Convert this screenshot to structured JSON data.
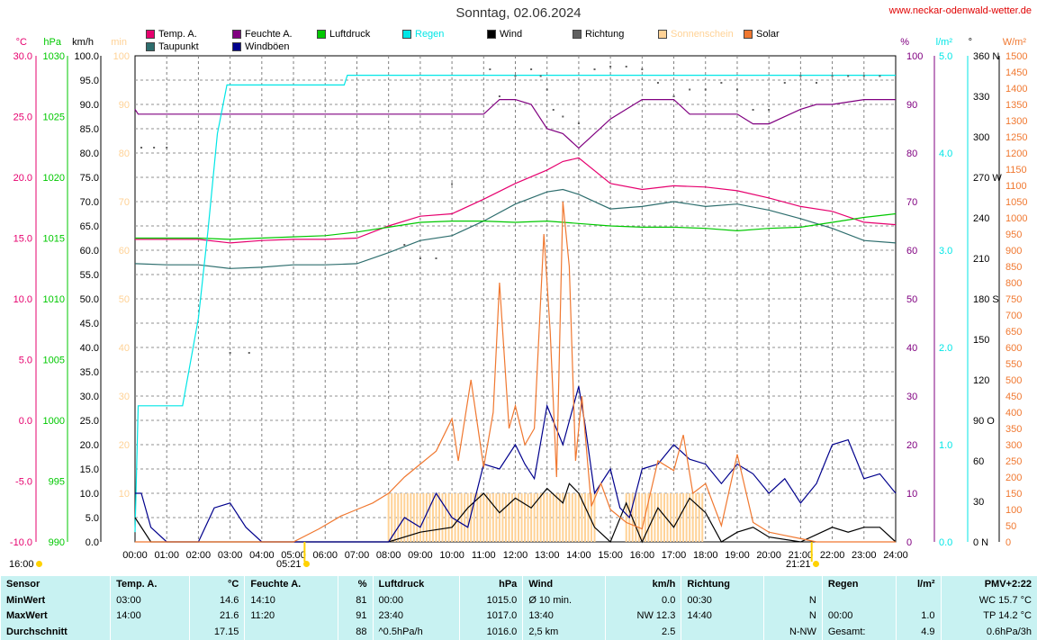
{
  "title": "Sonntag, 02.06.2024",
  "site": "www.neckar-odenwald-wetter.de",
  "legend": [
    {
      "label": "Temp. A.",
      "color": "#e6006e"
    },
    {
      "label": "Taupunkt",
      "color": "#2e6e6e"
    },
    {
      "label": "Feuchte A.",
      "color": "#800080"
    },
    {
      "label": "Windböen",
      "color": "#00008c"
    },
    {
      "label": "Luftdruck",
      "color": "#00c800"
    },
    {
      "label": "Regen",
      "color": "#00e6e6"
    },
    {
      "label": "Wind",
      "color": "#000000"
    },
    {
      "label": "Richtung",
      "color": "#606060"
    },
    {
      "label": "Sonnenschein",
      "color": "#ffd296"
    },
    {
      "label": "Solar",
      "color": "#f07830"
    }
  ],
  "axis_units": {
    "temp": "°C",
    "pressure": "hPa",
    "wind": "km/h",
    "sun": "min",
    "humidity": "%",
    "rain": "l/m²",
    "direction": "°",
    "solar": "W/m²"
  },
  "sun_times": {
    "left_label": "16:00",
    "sunrise": "05:21",
    "sunset": "21:21"
  },
  "chart_data": {
    "type": "line",
    "x_ticks": [
      "00:00",
      "01:00",
      "02:00",
      "03:00",
      "04:00",
      "05:00",
      "06:00",
      "07:00",
      "08:00",
      "09:00",
      "10:00",
      "11:00",
      "12:00",
      "13:00",
      "14:00",
      "15:00",
      "16:00",
      "17:00",
      "18:00",
      "19:00",
      "20:00",
      "21:00",
      "22:00",
      "23:00",
      "24:00"
    ],
    "axes": {
      "temp": {
        "ticks": [
          "30.0",
          "25.0",
          "20.0",
          "15.0",
          "10.0",
          "5.0",
          "0.0",
          "-5.0",
          "-10.0"
        ],
        "color": "#e6006e"
      },
      "pressure": {
        "ticks": [
          "1030",
          "1025",
          "1020",
          "1015",
          "1010",
          "1005",
          "1000",
          "995",
          "990"
        ],
        "color": "#00c800"
      },
      "wind": {
        "ticks": [
          "100.0",
          "95.0",
          "90.0",
          "85.0",
          "80.0",
          "75.0",
          "70.0",
          "65.0",
          "60.0",
          "55.0",
          "50.0",
          "45.0",
          "40.0",
          "35.0",
          "30.0",
          "25.0",
          "20.0",
          "15.0",
          "10.0",
          "5.0",
          "0.0"
        ],
        "color": "#000000"
      },
      "sun": {
        "ticks": [
          "100",
          "90",
          "80",
          "70",
          "60",
          "50",
          "40",
          "30",
          "20",
          "10"
        ],
        "color": "#ffd296"
      },
      "humidity": {
        "ticks": [
          "100",
          "90",
          "80",
          "70",
          "60",
          "50",
          "40",
          "30",
          "20",
          "10",
          "0"
        ],
        "color": "#800080"
      },
      "rain": {
        "ticks": [
          "5.0",
          "4.0",
          "3.0",
          "2.0",
          "1.0",
          "0.0"
        ],
        "color": "#00e6e6"
      },
      "direction": {
        "ticks": [
          "360 N",
          "330",
          "300",
          "270 W",
          "240",
          "210",
          "180 S",
          "150",
          "120",
          "90 O",
          "60",
          "30",
          "0 N"
        ],
        "color": "#000000"
      },
      "solar": {
        "ticks": [
          "1500",
          "1450",
          "1400",
          "1350",
          "1300",
          "1250",
          "1200",
          "1150",
          "1100",
          "1050",
          "1000",
          "950",
          "900",
          "850",
          "800",
          "750",
          "700",
          "650",
          "600",
          "550",
          "500",
          "450",
          "400",
          "350",
          "300",
          "250",
          "200",
          "150",
          "100",
          "50",
          "0"
        ],
        "color": "#f07830"
      }
    },
    "series": [
      {
        "name": "Temp. A.",
        "unit": "°C",
        "axis": "temp",
        "color": "#e6006e",
        "x": [
          0,
          1,
          2,
          3,
          4,
          5,
          6,
          7,
          8,
          9,
          10,
          11,
          12,
          13,
          13.5,
          14,
          15,
          16,
          17,
          18,
          19,
          20,
          21,
          22,
          23,
          24
        ],
        "y": [
          14.9,
          14.9,
          14.9,
          14.6,
          14.8,
          14.9,
          14.9,
          15.0,
          16.0,
          16.8,
          17.0,
          18.2,
          19.5,
          20.6,
          21.3,
          21.6,
          19.5,
          19.0,
          19.3,
          19.2,
          18.9,
          18.3,
          17.6,
          17.2,
          16.3,
          16.1
        ]
      },
      {
        "name": "Taupunkt",
        "unit": "°C",
        "axis": "temp",
        "color": "#2e6e6e",
        "x": [
          0,
          1,
          2,
          3,
          4,
          5,
          6,
          7,
          8,
          9,
          10,
          11,
          12,
          13,
          13.5,
          14,
          15,
          16,
          17,
          18,
          19,
          20,
          21,
          22,
          23,
          24
        ],
        "y": [
          12.9,
          12.8,
          12.8,
          12.5,
          12.6,
          12.8,
          12.8,
          12.9,
          13.8,
          14.8,
          15.2,
          16.4,
          17.8,
          18.8,
          19.0,
          18.6,
          17.4,
          17.6,
          18.0,
          17.6,
          17.8,
          17.3,
          16.6,
          15.8,
          14.8,
          14.6
        ]
      },
      {
        "name": "Feuchte A.",
        "unit": "%",
        "axis": "humidity",
        "color": "#800080",
        "x": [
          0,
          0.1,
          1,
          5,
          10,
          10.5,
          11,
          11.5,
          12,
          12.5,
          13,
          13.5,
          14,
          14.5,
          15,
          15.5,
          16,
          17,
          17.5,
          18,
          19,
          19.5,
          20,
          21,
          21.5,
          22,
          23,
          24
        ],
        "y": [
          89,
          88,
          88,
          88,
          88,
          88,
          88,
          91,
          91,
          90,
          85,
          84,
          81,
          84,
          87,
          89,
          91,
          91,
          88,
          88,
          88,
          86,
          86,
          89,
          90,
          90,
          91,
          91
        ]
      },
      {
        "name": "Luftdruck",
        "unit": "hPa",
        "axis": "pressure",
        "color": "#00c800",
        "x": [
          0,
          1,
          2,
          3,
          4,
          5,
          6,
          7,
          8,
          9,
          10,
          11,
          12,
          13,
          14,
          15,
          16,
          17,
          18,
          19,
          20,
          21,
          22,
          23,
          24
        ],
        "y": [
          1015.0,
          1015.0,
          1015.0,
          1014.9,
          1015.0,
          1015.1,
          1015.2,
          1015.5,
          1015.9,
          1016.3,
          1016.4,
          1016.4,
          1016.3,
          1016.4,
          1016.2,
          1016.0,
          1015.9,
          1015.9,
          1015.8,
          1015.6,
          1015.8,
          1015.9,
          1016.3,
          1016.7,
          1017.0
        ]
      },
      {
        "name": "Regen",
        "unit": "l/m²",
        "axis": "rain",
        "color": "#00e6e6",
        "x": [
          0,
          0.1,
          1.5,
          2.0,
          2.3,
          2.6,
          2.9,
          3.0,
          6.6,
          6.7,
          24
        ],
        "y": [
          0.1,
          1.4,
          1.4,
          2.3,
          3.2,
          4.2,
          4.7,
          4.7,
          4.7,
          4.8,
          4.8
        ]
      },
      {
        "name": "Wind",
        "unit": "km/h",
        "axis": "wind",
        "color": "#000000",
        "x": [
          0,
          0.5,
          1,
          4,
          5,
          6,
          8,
          9,
          10,
          10.5,
          11,
          11.5,
          12,
          12.5,
          13,
          13.5,
          13.7,
          14,
          14.5,
          15,
          15.5,
          16,
          16.5,
          17,
          17.5,
          18,
          18.5,
          19,
          19.5,
          20,
          21,
          22,
          22.5,
          23,
          23.5,
          24
        ],
        "y": [
          5,
          0,
          0,
          0,
          0,
          0,
          0,
          2,
          3,
          7,
          10,
          6,
          9,
          7,
          11,
          8,
          12,
          10,
          3,
          0,
          8,
          0,
          7,
          3,
          9,
          6,
          0,
          2,
          3,
          1,
          0,
          3,
          2,
          3,
          3,
          0
        ],
        "min": "0.0",
        "max": "12.3"
      },
      {
        "name": "Windböen",
        "unit": "km/h",
        "axis": "wind",
        "color": "#00008c",
        "x": [
          0,
          0.2,
          0.5,
          1,
          2,
          2.5,
          3,
          3.5,
          4,
          5,
          6,
          8,
          8.5,
          9,
          9.5,
          10,
          10.5,
          11,
          11.5,
          12,
          12.3,
          12.6,
          13,
          13.5,
          14,
          14.2,
          14.5,
          15,
          15.3,
          15.6,
          16,
          16.5,
          17,
          17.5,
          18,
          18.5,
          19,
          19.5,
          20,
          20.5,
          21,
          21.5,
          22,
          22.5,
          23,
          23.5,
          24
        ],
        "y": [
          10,
          10,
          3,
          0,
          0,
          7,
          8,
          3,
          0,
          0,
          0,
          0,
          5,
          3,
          10,
          5,
          3,
          16,
          15,
          20,
          16,
          13,
          28,
          20,
          32,
          24,
          10,
          15,
          7,
          5,
          15,
          16,
          20,
          17,
          16,
          12,
          16,
          14,
          10,
          13,
          8,
          12,
          20,
          21,
          13,
          14,
          10
        ]
      },
      {
        "name": "Richtung",
        "unit": "°",
        "axis": "direction",
        "x": [
          0.2,
          0.6,
          1.0,
          3.0,
          3.6,
          8.5,
          9.0,
          9.5,
          10.0,
          11.2,
          11.5,
          12.0,
          12.5,
          12.8,
          13.0,
          13.2,
          13.5,
          14.0,
          14.5,
          15.0,
          15.5,
          16.0,
          16.5,
          17.0,
          17.5,
          18.0,
          18.5,
          19.0,
          19.5,
          20.0,
          20.5,
          21.0,
          21.5,
          22.0,
          22.5,
          23.0,
          23.5
        ],
        "y": [
          292,
          292,
          292,
          140,
          140,
          220,
          210,
          210,
          265,
          350,
          330,
          345,
          350,
          345,
          335,
          320,
          315,
          310,
          350,
          352,
          352,
          350,
          340,
          330,
          335,
          335,
          340,
          335,
          320,
          320,
          340,
          345,
          340,
          345,
          345,
          345,
          345
        ]
      },
      {
        "name": "Sonnenschein",
        "unit": "min",
        "axis": "sun",
        "color": "#ffd296",
        "x": [
          8,
          14.5,
          15.5,
          18
        ],
        "y": [
          10,
          10,
          10,
          10
        ]
      },
      {
        "name": "Solar",
        "unit": "W/m²",
        "axis": "solar",
        "color": "#f07830",
        "x": [
          0,
          5,
          5.8,
          6.5,
          7,
          7.5,
          8,
          8.5,
          9,
          9.5,
          10,
          10.2,
          10.6,
          11,
          11.3,
          11.5,
          11.8,
          12,
          12.3,
          12.6,
          12.9,
          13.1,
          13.3,
          13.5,
          13.7,
          13.9,
          14.1,
          14.4,
          14.7,
          15,
          15.5,
          16,
          16.5,
          17,
          17.3,
          17.6,
          18,
          18.5,
          19,
          19.5,
          20,
          20.5,
          21,
          21.5,
          24
        ],
        "y": [
          0,
          0,
          40,
          80,
          100,
          120,
          150,
          200,
          240,
          280,
          380,
          250,
          500,
          230,
          400,
          800,
          350,
          420,
          300,
          350,
          950,
          650,
          200,
          1050,
          850,
          250,
          450,
          110,
          180,
          100,
          60,
          40,
          250,
          220,
          330,
          150,
          180,
          50,
          270,
          60,
          30,
          20,
          10,
          0,
          0
        ]
      }
    ]
  },
  "stats": {
    "header": [
      "Sensor",
      "Temp. A.",
      "°C",
      "Feuchte A.",
      "%",
      "Luftdruck",
      "hPa",
      "Wind",
      "km/h",
      "Richtung",
      "",
      "Regen",
      "l/m²",
      "PMV+2:22"
    ],
    "rows": [
      [
        "MinWert",
        "03:00",
        "14.6",
        "14:10",
        "81",
        "00:00",
        "1015.0",
        "Ø 10 min.",
        "0.0",
        "00:30",
        "N",
        "",
        "",
        "WC 15.7 °C"
      ],
      [
        "MaxWert",
        "14:00",
        "21.6",
        "11:20",
        "91",
        "23:40",
        "1017.0",
        "13:40",
        "NW 12.3",
        "14:40",
        "N",
        "00:00",
        "1.0",
        "TP 14.2 °C"
      ],
      [
        "Durchschnitt",
        "",
        "17.15",
        "",
        "88",
        "^0.5hPa/h",
        "1016.0",
        "2,5 km",
        "2.5",
        "",
        "N-NW",
        "Gesamt:",
        "4.9",
        "0.6hPa/3h"
      ]
    ]
  }
}
